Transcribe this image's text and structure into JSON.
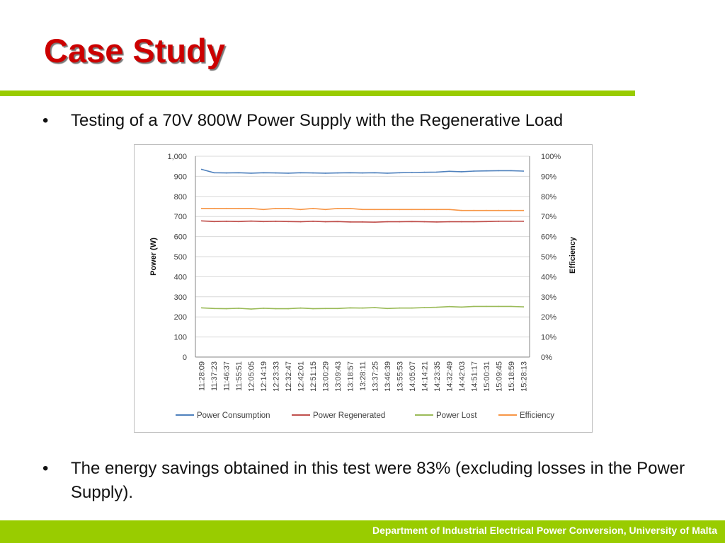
{
  "slide": {
    "title": "Case Study",
    "bullet1": "Testing of a 70V 800W Power Supply with the Regenerative Load",
    "bullet2": "The energy savings obtained in this test were 83% (excluding losses in the Power Supply).",
    "footer": "Department of Industrial Electrical Power Conversion, University of Malta",
    "bullet_char": "•",
    "colors": {
      "title": "#cc0000",
      "accent": "#99cc00"
    }
  },
  "chart_data": {
    "type": "line",
    "title": "",
    "ylabel": "Power (W)",
    "y2label": "Efficiency",
    "ylim": [
      0,
      1000
    ],
    "y2lim": [
      0,
      100
    ],
    "yticks": [
      "1,000",
      "900",
      "800",
      "700",
      "600",
      "500",
      "400",
      "300",
      "200",
      "100",
      "0"
    ],
    "y2ticks": [
      "100%",
      "90%",
      "80%",
      "70%",
      "60%",
      "50%",
      "40%",
      "30%",
      "20%",
      "10%",
      "0%"
    ],
    "categories": [
      "11:28:09",
      "11:37:23",
      "11:46:37",
      "11:55:51",
      "12:05:05",
      "12:14:19",
      "12:23:33",
      "12:32:47",
      "12:42:01",
      "12:51:15",
      "13:00:29",
      "13:09:43",
      "13:18:57",
      "13:28:11",
      "13:37:25",
      "13:46:39",
      "13:55:53",
      "14:05:07",
      "14:14:21",
      "14:23:35",
      "14:32:49",
      "14:42:03",
      "14:51:17",
      "15:00:31",
      "15:09:45",
      "15:18:59",
      "15:28:13"
    ],
    "grid": true,
    "legend_position": "bottom",
    "series": [
      {
        "name": "Power Consumption",
        "axis": "left",
        "color": "#4f81bd",
        "values": [
          935,
          918,
          917,
          918,
          916,
          918,
          917,
          916,
          918,
          917,
          916,
          917,
          918,
          917,
          918,
          916,
          918,
          919,
          920,
          921,
          925,
          923,
          926,
          927,
          928,
          928,
          926
        ]
      },
      {
        "name": "Power Regenerated",
        "axis": "left",
        "color": "#c0504d",
        "values": [
          678,
          675,
          676,
          675,
          677,
          675,
          676,
          675,
          674,
          676,
          674,
          675,
          673,
          673,
          672,
          674,
          674,
          675,
          674,
          673,
          674,
          674,
          674,
          675,
          676,
          676,
          676
        ]
      },
      {
        "name": "Power Lost",
        "axis": "left",
        "color": "#9bbb59",
        "values": [
          245,
          242,
          241,
          243,
          239,
          243,
          241,
          241,
          244,
          241,
          242,
          242,
          245,
          244,
          246,
          242,
          244,
          244,
          246,
          248,
          251,
          249,
          252,
          252,
          252,
          252,
          250
        ]
      },
      {
        "name": "Efficiency",
        "axis": "right",
        "color": "#f79646",
        "values": [
          74,
          74,
          74,
          74,
          74,
          73.5,
          74,
          74,
          73.5,
          74,
          73.5,
          74,
          74,
          73.5,
          73.5,
          73.5,
          73.5,
          73.5,
          73.5,
          73.5,
          73.5,
          73,
          73,
          73,
          73,
          73,
          73
        ]
      }
    ]
  }
}
